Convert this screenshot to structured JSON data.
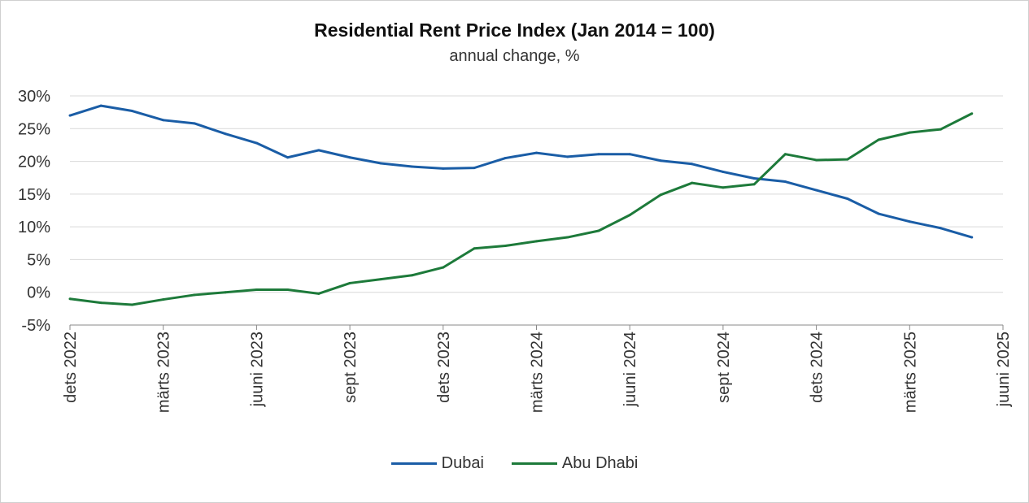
{
  "chart_data": {
    "type": "line",
    "title": "Residential Rent Price Index (Jan 2014 = 100)",
    "subtitle": "annual change, %",
    "xlabel": "",
    "ylabel": "",
    "ylim": [
      -5,
      30
    ],
    "yticks": [
      "30%",
      "25%",
      "20%",
      "15%",
      "10%",
      "5%",
      "0%",
      "-5%"
    ],
    "ytick_values": [
      30,
      25,
      20,
      15,
      10,
      5,
      0,
      -5
    ],
    "xticks": [
      "dets 2022",
      "märts 2023",
      "juuni 2023",
      "sept 2023",
      "dets 2023",
      "märts 2024",
      "juuni 2024",
      "sept 2024",
      "dets 2024",
      "märts 2025",
      "juuni 2025"
    ],
    "x": [
      "2022-12",
      "2023-01",
      "2023-02",
      "2023-03",
      "2023-04",
      "2023-05",
      "2023-06",
      "2023-07",
      "2023-08",
      "2023-09",
      "2023-10",
      "2023-11",
      "2023-12",
      "2024-01",
      "2024-02",
      "2024-03",
      "2024-04",
      "2024-05",
      "2024-06",
      "2024-07",
      "2024-08",
      "2024-09",
      "2024-10",
      "2024-11",
      "2024-12",
      "2025-01",
      "2025-02",
      "2025-03",
      "2025-04",
      "2025-05"
    ],
    "grid": true,
    "legend_position": "bottom",
    "series": [
      {
        "name": "Dubai",
        "color": "#1a5da6",
        "values": [
          27.0,
          28.5,
          27.7,
          26.3,
          25.8,
          24.2,
          22.8,
          20.6,
          21.7,
          20.6,
          19.7,
          19.2,
          18.9,
          19.0,
          20.5,
          21.3,
          20.7,
          21.1,
          21.1,
          20.1,
          19.6,
          18.4,
          17.4,
          16.9,
          15.6,
          14.3,
          12.0,
          10.8,
          9.8,
          8.4
        ]
      },
      {
        "name": "Abu Dhabi",
        "color": "#1d7a3a",
        "values": [
          -1.0,
          -1.6,
          -1.9,
          -1.1,
          -0.4,
          0.0,
          0.4,
          0.4,
          -0.2,
          1.4,
          2.0,
          2.6,
          3.8,
          6.7,
          7.1,
          7.8,
          8.4,
          9.4,
          11.8,
          14.9,
          16.7,
          16.0,
          16.5,
          21.1,
          20.2,
          20.3,
          23.3,
          24.4,
          24.9,
          27.3
        ]
      }
    ]
  }
}
